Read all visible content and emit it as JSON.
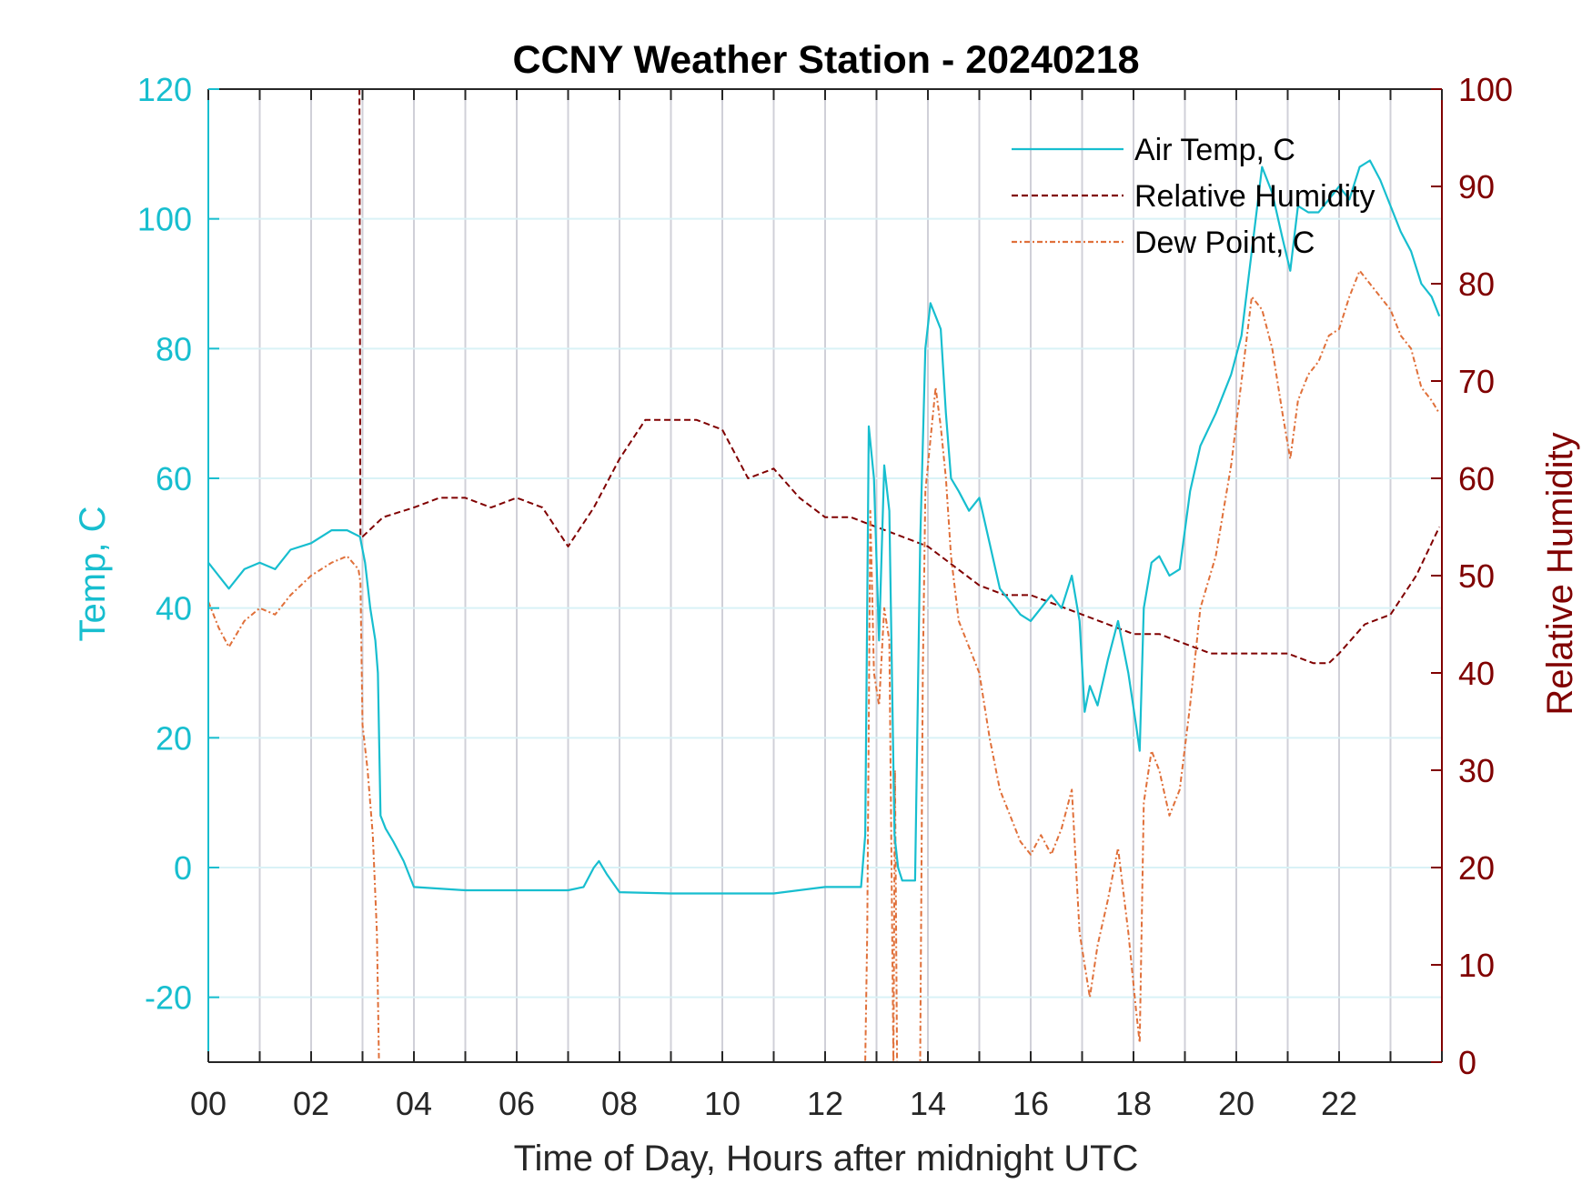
{
  "chart_data": {
    "type": "line",
    "title": "CCNY Weather Station - 20240218",
    "xlabel": "Time of Day, Hours after midnight UTC",
    "ylabel_left": "Temp, C",
    "ylabel_right": "Relative Humidity",
    "xlim": [
      0,
      24
    ],
    "ylim_left": [
      -30,
      120
    ],
    "ylim_right": [
      0,
      100
    ],
    "x_ticks": [
      0,
      2,
      4,
      6,
      8,
      10,
      12,
      14,
      16,
      18,
      20,
      22
    ],
    "x_tick_labels": [
      "00",
      "02",
      "04",
      "06",
      "08",
      "10",
      "12",
      "14",
      "16",
      "18",
      "20",
      "22"
    ],
    "y_left_ticks": [
      -20,
      0,
      20,
      40,
      60,
      80,
      100,
      120
    ],
    "y_right_ticks": [
      0,
      10,
      20,
      30,
      40,
      50,
      60,
      70,
      80,
      90,
      100
    ],
    "grid": true,
    "legend_position": "top-right",
    "colors": {
      "air_temp": "#17becf",
      "relative_humidity": "#800000",
      "dew_point": "#e0703a",
      "left_axis": "#17becf",
      "right_axis": "#800000"
    },
    "series": [
      {
        "name": "Air Temp, C",
        "axis": "left",
        "style": "solid",
        "x": [
          0.0,
          0.2,
          0.4,
          0.7,
          1.0,
          1.3,
          1.6,
          2.0,
          2.4,
          2.7,
          2.95,
          3.05,
          3.15,
          3.25,
          3.3,
          3.35,
          3.45,
          3.6,
          3.8,
          4.0,
          5.0,
          6.0,
          7.0,
          7.3,
          7.5,
          7.6,
          7.75,
          8.0,
          9.0,
          10.0,
          11.0,
          12.0,
          12.7,
          12.78,
          12.85,
          12.95,
          13.05,
          13.15,
          13.25,
          13.35,
          13.42,
          13.5,
          13.6,
          13.75,
          13.85,
          13.95,
          14.05,
          14.15,
          14.25,
          14.35,
          14.45,
          14.6,
          14.8,
          15.0,
          15.2,
          15.4,
          15.6,
          15.8,
          16.0,
          16.2,
          16.4,
          16.6,
          16.8,
          16.95,
          17.05,
          17.15,
          17.3,
          17.5,
          17.7,
          17.9,
          18.05,
          18.12,
          18.2,
          18.35,
          18.5,
          18.7,
          18.9,
          19.1,
          19.3,
          19.6,
          19.9,
          20.1,
          20.3,
          20.5,
          20.7,
          20.9,
          21.05,
          21.2,
          21.4,
          21.6,
          21.8,
          22.0,
          22.2,
          22.4,
          22.6,
          22.8,
          23.0,
          23.2,
          23.4,
          23.6,
          23.8,
          23.95
        ],
        "y": [
          47,
          45,
          43,
          46,
          47,
          46,
          49,
          50,
          52,
          52,
          51,
          47,
          40,
          35,
          30,
          8,
          6,
          4,
          1,
          -3,
          -3.5,
          -3.5,
          -3.5,
          -3,
          0,
          1,
          -1,
          -3.8,
          -4,
          -4,
          -4,
          -3,
          -3,
          5,
          68,
          60,
          35,
          62,
          55,
          5,
          0,
          -2,
          -2,
          -2,
          50,
          80,
          87,
          85,
          83,
          70,
          60,
          58,
          55,
          57,
          50,
          43,
          41,
          39,
          38,
          40,
          42,
          40,
          45,
          38,
          24,
          28,
          25,
          32,
          38,
          30,
          22,
          18,
          40,
          47,
          48,
          45,
          46,
          58,
          65,
          70,
          76,
          82,
          95,
          108,
          104,
          97,
          92,
          102,
          101,
          101,
          103,
          105,
          103,
          108,
          109,
          106,
          102,
          98,
          95,
          90,
          88,
          85
        ]
      },
      {
        "name": "Relative Humidity",
        "axis": "right",
        "style": "dashed",
        "x": [
          2.93,
          2.94,
          2.96,
          3.0,
          3.4,
          4.0,
          4.5,
          5.0,
          5.5,
          6.0,
          6.5,
          7.0,
          7.5,
          8.0,
          8.5,
          9.0,
          9.5,
          10.0,
          10.5,
          11.0,
          11.5,
          12.0,
          12.5,
          13.0,
          13.5,
          14.0,
          14.5,
          15.0,
          15.5,
          16.0,
          16.5,
          17.0,
          17.5,
          18.0,
          18.5,
          19.0,
          19.5,
          20.0,
          20.5,
          21.0,
          21.5,
          21.8,
          22.0,
          22.5,
          23.0,
          23.5,
          23.95
        ],
        "y": [
          100,
          100,
          54,
          54,
          56,
          57,
          58,
          58,
          57,
          58,
          57,
          53,
          57,
          62,
          66,
          66,
          66,
          65,
          60,
          61,
          58,
          56,
          56,
          55,
          54,
          53,
          51,
          49,
          48,
          48,
          47,
          46,
          45,
          44,
          44,
          43,
          42,
          42,
          42,
          42,
          41,
          41,
          42,
          45,
          46,
          50,
          55
        ]
      },
      {
        "name": "Dew Point, C",
        "axis": "left",
        "style": "dashdot",
        "x": [
          0.0,
          0.2,
          0.4,
          0.7,
          1.0,
          1.3,
          1.6,
          2.0,
          2.4,
          2.7,
          2.92,
          2.96,
          3.0,
          3.1,
          3.2,
          3.28,
          3.32,
          12.78,
          12.82,
          12.88,
          12.95,
          13.05,
          13.15,
          13.25,
          13.33,
          13.36,
          13.4,
          13.85,
          13.9,
          13.95,
          14.05,
          14.15,
          14.25,
          14.35,
          14.45,
          14.6,
          14.8,
          15.0,
          15.2,
          15.4,
          15.6,
          15.8,
          16.0,
          16.2,
          16.4,
          16.6,
          16.8,
          16.95,
          17.05,
          17.15,
          17.3,
          17.5,
          17.7,
          17.9,
          18.05,
          18.12,
          18.2,
          18.35,
          18.5,
          18.7,
          18.9,
          19.1,
          19.3,
          19.6,
          19.9,
          20.1,
          20.3,
          20.5,
          20.7,
          20.9,
          21.05,
          21.2,
          21.4,
          21.6,
          21.8,
          22.0,
          22.2,
          22.4,
          22.6,
          22.8,
          23.0,
          23.2,
          23.4,
          23.6,
          23.8,
          23.95
        ],
        "y": [
          41,
          37,
          34,
          38,
          40,
          39,
          42,
          45,
          47,
          48,
          46,
          44,
          22,
          15,
          5,
          -10,
          -40,
          -40,
          -10,
          55,
          30,
          25,
          40,
          35,
          -40,
          15,
          -40,
          -40,
          30,
          58,
          66,
          74,
          68,
          60,
          48,
          38,
          34,
          30,
          20,
          12,
          8,
          4,
          2,
          5,
          2,
          6,
          12,
          -10,
          -15,
          -20,
          -12,
          -5,
          3,
          -10,
          -22,
          -27,
          10,
          18,
          15,
          8,
          12,
          25,
          40,
          48,
          62,
          75,
          88,
          86,
          80,
          70,
          63,
          72,
          76,
          78,
          82,
          83,
          88,
          92,
          90,
          88,
          86,
          82,
          80,
          74,
          72,
          70
        ]
      }
    ]
  }
}
